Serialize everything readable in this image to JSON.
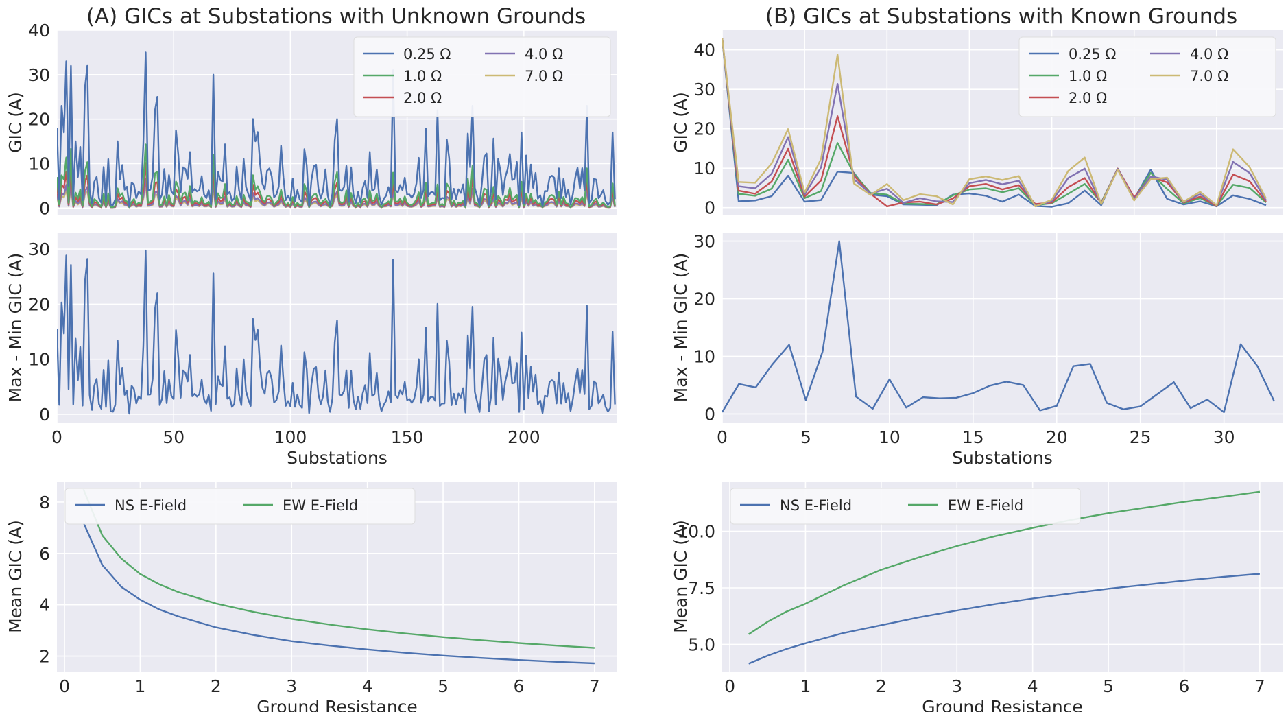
{
  "chart_data": [
    {
      "id": "a_top",
      "type": "line",
      "title": "(A) GICs at Substations with Unknown Grounds",
      "xlabel": "",
      "ylabel": "GIC (A)",
      "xlim": [
        0,
        240
      ],
      "ylim": [
        -1.5,
        40
      ],
      "xticks": [
        0,
        50,
        100,
        150,
        200
      ],
      "yticks": [
        0,
        10,
        20,
        30,
        40
      ],
      "show_xticklabels": false,
      "legend": {
        "placement": "top-right",
        "columns": 2,
        "order": [
          0,
          1,
          2,
          3,
          4
        ]
      },
      "generated": {
        "n": 240,
        "resistances": [
          0.25,
          1.0,
          2.0,
          4.0,
          7.0
        ],
        "labels": [
          "0.25 Ω",
          "1.0 Ω",
          "2.0 Ω",
          "4.0 Ω",
          "7.0 Ω"
        ],
        "colors": [
          "#4c72b0",
          "#55a868",
          "#c44e52",
          "#8172b2",
          "#ccb974"
        ]
      },
      "anchors": [
        [
          0,
          18
        ],
        [
          1,
          2
        ],
        [
          2,
          23
        ],
        [
          3,
          17
        ],
        [
          4,
          33
        ],
        [
          5,
          5
        ],
        [
          6,
          32
        ],
        [
          7,
          2
        ],
        [
          8,
          15
        ],
        [
          9,
          7
        ],
        [
          12,
          27
        ],
        [
          13,
          32
        ],
        [
          14,
          4
        ],
        [
          22,
          11
        ],
        [
          26,
          15
        ],
        [
          38,
          35
        ],
        [
          39,
          4
        ],
        [
          42,
          22
        ],
        [
          43,
          25
        ],
        [
          67,
          30
        ],
        [
          84,
          20
        ],
        [
          85,
          15
        ],
        [
          96,
          14
        ],
        [
          120,
          20
        ],
        [
          144,
          31
        ],
        [
          145,
          4
        ],
        [
          163,
          22
        ],
        [
          178,
          23
        ],
        [
          199,
          17
        ],
        [
          227,
          23
        ],
        [
          238,
          17
        ],
        [
          239,
          2
        ]
      ]
    },
    {
      "id": "a_mid",
      "type": "line",
      "xlabel": "Substations",
      "ylabel": "Max - Min GIC (A)",
      "xlim": [
        0,
        240
      ],
      "ylim": [
        -1.5,
        33
      ],
      "xticks": [
        0,
        50,
        100,
        150,
        200
      ],
      "yticks": [
        0,
        10,
        20,
        30
      ],
      "show_xticklabels": true,
      "series": [
        {
          "name": "Max - Min",
          "color": "#4c72b0",
          "derived_from": "a_top"
        }
      ]
    },
    {
      "id": "a_bot",
      "type": "line",
      "xlabel": "Ground Resistance",
      "ylabel": "Mean GIC (A)",
      "xlim": [
        -0.1,
        7.3
      ],
      "ylim": [
        1.4,
        8.8
      ],
      "xticks": [
        0,
        1,
        2,
        3,
        4,
        5,
        6,
        7
      ],
      "yticks": [
        2,
        4,
        6,
        8
      ],
      "show_xticklabels": true,
      "legend": {
        "placement": "top-left",
        "columns": 2,
        "order": [
          0,
          1
        ]
      },
      "series": [
        {
          "name": "NS E-Field",
          "color": "#4c72b0",
          "x": [
            0.25,
            0.5,
            0.75,
            1,
            1.25,
            1.5,
            2,
            2.5,
            3,
            3.5,
            4,
            4.5,
            5,
            5.5,
            6,
            6.5,
            7
          ],
          "y": [
            7.2,
            5.55,
            4.7,
            4.2,
            3.82,
            3.55,
            3.12,
            2.82,
            2.58,
            2.41,
            2.26,
            2.13,
            2.02,
            1.93,
            1.85,
            1.78,
            1.72
          ]
        },
        {
          "name": "EW E-Field",
          "color": "#55a868",
          "x": [
            0.25,
            0.5,
            0.75,
            1,
            1.25,
            1.5,
            2,
            2.5,
            3,
            3.5,
            4,
            4.5,
            5,
            5.5,
            6,
            6.5,
            7
          ],
          "y": [
            8.5,
            6.7,
            5.8,
            5.2,
            4.8,
            4.5,
            4.05,
            3.72,
            3.45,
            3.23,
            3.04,
            2.88,
            2.74,
            2.62,
            2.51,
            2.41,
            2.32
          ]
        }
      ]
    },
    {
      "id": "b_top",
      "type": "line",
      "title": "(B) GICs at Substations with Known Grounds",
      "xlabel": "",
      "ylabel": "GIC (A)",
      "xlim": [
        0,
        34
      ],
      "ylim": [
        -1.8,
        45
      ],
      "xticks": [
        0,
        5,
        10,
        15,
        20,
        25,
        30
      ],
      "yticks": [
        0,
        10,
        20,
        30,
        40
      ],
      "show_xticklabels": false,
      "legend": {
        "placement": "top-right",
        "columns": 2,
        "order": [
          0,
          1,
          2,
          3,
          4
        ]
      },
      "x": [
        0,
        1,
        2,
        3,
        4,
        5,
        6,
        7,
        8,
        9,
        10,
        11,
        12,
        13,
        14,
        15,
        16,
        17,
        18,
        19,
        20,
        21,
        22,
        23,
        24,
        25,
        26,
        27,
        28,
        29,
        30,
        31,
        32,
        33
      ],
      "series": [
        {
          "name": "0.25 Ω",
          "color": "#4c72b0",
          "values": [
            43,
            1.6,
            1.8,
            2.9,
            8.1,
            1.5,
            1.9,
            9.1,
            8.8,
            3.3,
            2.9,
            0.8,
            0.7,
            0.6,
            3.3,
            3.6,
            3.0,
            1.5,
            3.3,
            0.4,
            0.2,
            1.1,
            4.3,
            0.6,
            9.9,
            2.2,
            9.6,
            2.2,
            0.8,
            1.6,
            0.3,
            3.1,
            2.2,
            0.6
          ]
        },
        {
          "name": "1.0 Ω",
          "color": "#55a868",
          "values": [
            43,
            3.5,
            3.0,
            4.8,
            12.1,
            2.4,
            4.2,
            16.4,
            8.6,
            3.7,
            3.3,
            1.0,
            0.9,
            0.8,
            3.1,
            4.6,
            4.9,
            3.9,
            4.9,
            0.6,
            1.1,
            3.5,
            6.0,
            1.3,
            9.9,
            2.3,
            8.8,
            4.7,
            1.1,
            2.4,
            0.4,
            5.8,
            5.0,
            1.3
          ]
        },
        {
          "name": "2.0 Ω",
          "color": "#c44e52",
          "values": [
            43,
            4.3,
            3.5,
            6.6,
            14.9,
            2.8,
            6.9,
            23.2,
            8.1,
            3.5,
            0.3,
            1.3,
            1.5,
            0.8,
            2.3,
            5.4,
            6.0,
            4.6,
            5.7,
            0.9,
            1.3,
            5.2,
            7.5,
            1.1,
            9.9,
            2.6,
            7.8,
            6.4,
            1.3,
            2.8,
            0.4,
            8.4,
            6.7,
            1.5
          ]
        },
        {
          "name": "4.0 Ω",
          "color": "#8172b2",
          "values": [
            43,
            5.4,
            4.9,
            8.6,
            17.9,
            3.3,
            10.2,
            31.4,
            7.2,
            3.5,
            4.8,
            1.2,
            2.4,
            1.6,
            1.4,
            6.2,
            7.0,
            5.9,
            6.8,
            0.5,
            1.6,
            7.5,
            9.9,
            1.0,
            9.8,
            2.1,
            7.9,
            7.1,
            1.4,
            3.4,
            0.6,
            11.6,
            8.8,
            1.8
          ]
        },
        {
          "name": "7.0 Ω",
          "color": "#ccb974",
          "values": [
            43,
            6.5,
            6.3,
            11.2,
            19.9,
            3.8,
            12.4,
            38.8,
            6.1,
            3.2,
            6.0,
            1.9,
            3.4,
            2.9,
            0.8,
            7.2,
            7.9,
            7.0,
            8.0,
            0.3,
            2.0,
            9.3,
            12.7,
            0.9,
            9.6,
            1.8,
            7.2,
            7.6,
            1.5,
            4.0,
            0.6,
            14.8,
            10.3,
            2.3
          ]
        }
      ]
    },
    {
      "id": "b_mid",
      "type": "line",
      "xlabel": "Substations",
      "ylabel": "Max - Min GIC (A)",
      "xlim": [
        0,
        33.5
      ],
      "ylim": [
        -1.5,
        31.5
      ],
      "xticks": [
        0,
        5,
        10,
        15,
        20,
        25,
        30
      ],
      "yticks": [
        0,
        10,
        20,
        30
      ],
      "show_xticklabels": true,
      "series": [
        {
          "name": "Max - Min",
          "color": "#4c72b0",
          "x": [
            0,
            1,
            2,
            3,
            4,
            5,
            6,
            7,
            8,
            9,
            10,
            11,
            12,
            13,
            14,
            15,
            16,
            17,
            18,
            19,
            20,
            21,
            22,
            23,
            24,
            25,
            26,
            27,
            28,
            29,
            30,
            31,
            32,
            33
          ],
          "values": [
            0.3,
            5.2,
            4.6,
            8.6,
            12.0,
            2.4,
            10.8,
            30.0,
            3.0,
            0.9,
            6.0,
            1.1,
            2.9,
            2.7,
            2.8,
            3.6,
            4.9,
            5.6,
            5.0,
            0.6,
            1.4,
            8.3,
            8.7,
            1.9,
            0.8,
            1.3,
            3.4,
            5.5,
            1.0,
            2.5,
            0.3,
            12.1,
            8.3,
            2.2
          ]
        }
      ]
    },
    {
      "id": "b_bot",
      "type": "line",
      "xlabel": "Ground Resistance",
      "ylabel": "Mean GIC (A)",
      "xlim": [
        -0.1,
        7.3
      ],
      "ylim": [
        3.8,
        12.2
      ],
      "xticks": [
        0,
        1,
        2,
        3,
        4,
        5,
        6,
        7
      ],
      "yticks": [
        5.0,
        7.5,
        10.0
      ],
      "ytick_labels": [
        "5.0",
        "7.5",
        "10.0"
      ],
      "show_xticklabels": true,
      "legend": {
        "placement": "top-left",
        "columns": 2,
        "order": [
          0,
          1
        ]
      },
      "series": [
        {
          "name": "NS E-Field",
          "color": "#4c72b0",
          "x": [
            0.25,
            0.5,
            0.75,
            1,
            1.5,
            2,
            2.5,
            3,
            3.5,
            4,
            4.5,
            5,
            5.5,
            6,
            6.5,
            7
          ],
          "y": [
            4.15,
            4.5,
            4.8,
            5.05,
            5.5,
            5.85,
            6.2,
            6.5,
            6.78,
            7.03,
            7.25,
            7.46,
            7.64,
            7.82,
            7.98,
            8.12
          ]
        },
        {
          "name": "EW E-Field",
          "color": "#55a868",
          "x": [
            0.25,
            0.5,
            0.75,
            1,
            1.5,
            2,
            2.5,
            3,
            3.5,
            4,
            4.5,
            5,
            5.5,
            6,
            6.5,
            7
          ],
          "y": [
            5.45,
            6.0,
            6.45,
            6.8,
            7.6,
            8.3,
            8.85,
            9.35,
            9.78,
            10.15,
            10.5,
            10.8,
            11.05,
            11.3,
            11.52,
            11.75
          ]
        }
      ]
    }
  ]
}
